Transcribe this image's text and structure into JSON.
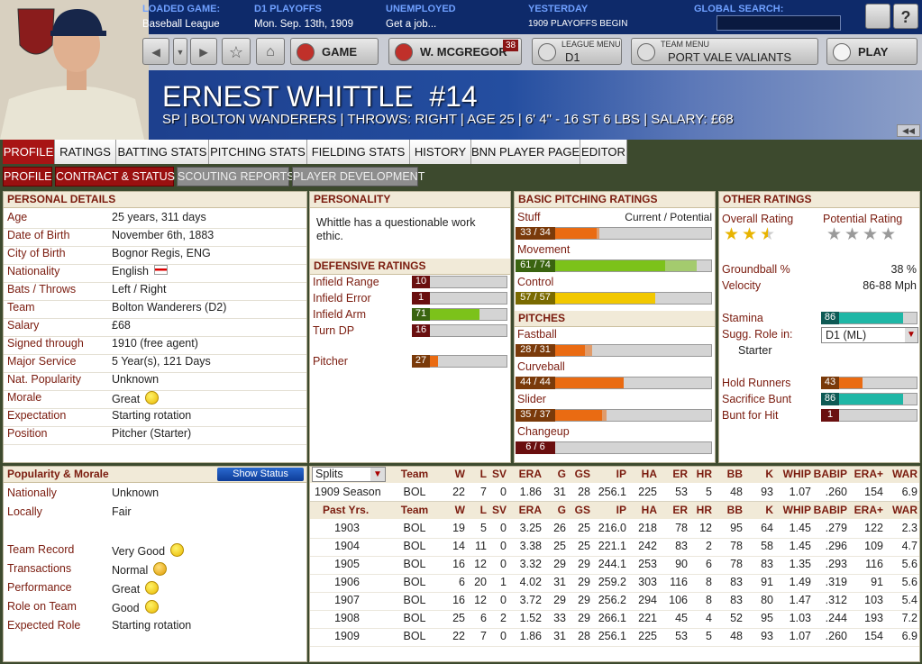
{
  "header": {
    "loaded_game_label": "LOADED GAME:",
    "loaded_game": "Baseball League",
    "league_label": "D1 PLAYOFFS",
    "date": "Mon. Sep. 13th, 1909",
    "status_label": "UNEMPLOYED",
    "status": "Get a job...",
    "yesterday_label": "YESTERDAY",
    "yesterday": "1909 PLAYOFFS BEGIN",
    "search_label": "GLOBAL SEARCH:"
  },
  "nav": {
    "game": "GAME",
    "manager": "W. MCGREGOR",
    "manager_badge": "38",
    "league_menu_label": "LEAGUE MENU",
    "league_menu": "D1",
    "team_menu_label": "TEAM MENU",
    "team_menu": "PORT VALE VALIANTS",
    "play": "PLAY"
  },
  "player": {
    "name": "ERNEST WHITTLE  #14",
    "info": "SP | BOLTON WANDERERS | THROWS: RIGHT | AGE 25 | 6' 4\" - 16 ST 6 LBS | SALARY: £68"
  },
  "tabs": [
    "PROFILE",
    "RATINGS",
    "BATTING STATS",
    "PITCHING STATS",
    "FIELDING STATS",
    "HISTORY",
    "BNN PLAYER PAGE",
    "EDITOR"
  ],
  "subtabs": [
    "PROFILE",
    "CONTRACT & STATUS",
    "SCOUTING REPORTS",
    "PLAYER DEVELOPMENT"
  ],
  "personal_details": {
    "title": "PERSONAL DETAILS",
    "rows": [
      [
        "Age",
        "25 years, 311 days"
      ],
      [
        "Date of Birth",
        "November 6th, 1883"
      ],
      [
        "City of Birth",
        "Bognor Regis, ENG"
      ],
      [
        "Nationality",
        "English"
      ],
      [
        "Bats / Throws",
        "Left / Right"
      ],
      [
        "Team",
        "Bolton Wanderers (D2)"
      ],
      [
        "Salary",
        "£68"
      ],
      [
        "Signed through",
        "1910 (free agent)"
      ],
      [
        "Major Service",
        "5 Year(s), 121 Days"
      ],
      [
        "Nat. Popularity",
        "Unknown"
      ],
      [
        "Morale",
        "Great"
      ],
      [
        "Expectation",
        "Starting rotation"
      ],
      [
        "Position",
        "Pitcher (Starter)"
      ]
    ]
  },
  "personality": {
    "title": "PERSONALITY",
    "text": "Whittle has a questionable work ethic.",
    "defensive_title": "DEFENSIVE RATINGS",
    "defensive": [
      {
        "name": "Infield Range",
        "value": 10
      },
      {
        "name": "Infield Error",
        "value": 1
      },
      {
        "name": "Infield Arm",
        "value": 71
      },
      {
        "name": "Turn DP",
        "value": 16
      }
    ],
    "pitcher": {
      "name": "Pitcher",
      "value": 27
    }
  },
  "basic_pitching": {
    "title": "BASIC PITCHING RATINGS",
    "header": "Current / Potential",
    "ratings": [
      {
        "name": "Stuff",
        "value": "33 / 34"
      },
      {
        "name": "Movement",
        "value": "61 / 74"
      },
      {
        "name": "Control",
        "value": "57 / 57"
      }
    ],
    "pitches_title": "PITCHES",
    "pitches": [
      {
        "name": "Fastball",
        "value": "28 / 31"
      },
      {
        "name": "Curveball",
        "value": "44 / 44"
      },
      {
        "name": "Slider",
        "value": "35 / 37"
      },
      {
        "name": "Changeup",
        "value": "6 / 6"
      }
    ]
  },
  "other_ratings": {
    "title": "OTHER RATINGS",
    "overall_label": "Overall Rating",
    "potential_label": "Potential Rating",
    "overall_stars": 2.5,
    "potential_stars": 4,
    "rows": [
      {
        "label": "Groundball %",
        "value": "38 %"
      },
      {
        "label": "Velocity",
        "value": "86-88 Mph"
      }
    ],
    "stamina": {
      "name": "Stamina",
      "value": 86
    },
    "role_label": "Sugg. Role in:",
    "role_select": "D1 (ML)",
    "role": "Starter",
    "bars": [
      {
        "name": "Hold Runners",
        "value": 43
      },
      {
        "name": "Sacrifice Bunt",
        "value": 86
      },
      {
        "name": "Bunt for Hit",
        "value": 1
      }
    ]
  },
  "popularity": {
    "title": "Popularity & Morale",
    "button": "Show Status",
    "rows": [
      [
        "Nationally",
        "Unknown"
      ],
      [
        "Locally",
        "Fair"
      ]
    ],
    "rows2": [
      [
        "Team Record",
        "Very Good"
      ],
      [
        "Transactions",
        "Normal"
      ],
      [
        "Performance",
        "Great"
      ],
      [
        "Role on Team",
        "Good"
      ],
      [
        "Expected Role",
        "Starting rotation"
      ]
    ]
  },
  "stats": {
    "splits": "Splits",
    "columns": [
      "Team",
      "W",
      "L",
      "SV",
      "ERA",
      "G",
      "GS",
      "IP",
      "HA",
      "ER",
      "HR",
      "BB",
      "K",
      "WHIP",
      "BABIP",
      "ERA+",
      "WAR"
    ],
    "season": [
      "1909 Season",
      "BOL",
      22,
      7,
      0,
      1.86,
      31,
      28,
      256.1,
      225,
      53,
      5,
      48,
      93,
      1.07,
      ".260",
      154,
      6.9
    ],
    "past_label": "Past Yrs.",
    "years": [
      [
        1903,
        "BOL",
        19,
        5,
        0,
        3.25,
        26,
        25,
        "216.0",
        218,
        78,
        12,
        95,
        64,
        1.45,
        ".279",
        122,
        2.3
      ],
      [
        1904,
        "BOL",
        14,
        11,
        0,
        3.38,
        25,
        25,
        221.1,
        242,
        83,
        2,
        78,
        58,
        1.45,
        ".296",
        109,
        4.7
      ],
      [
        1905,
        "BOL",
        16,
        12,
        0,
        3.32,
        29,
        29,
        244.1,
        253,
        90,
        6,
        78,
        83,
        1.35,
        ".293",
        116,
        5.6
      ],
      [
        1906,
        "BOL",
        6,
        20,
        1,
        4.02,
        31,
        29,
        259.2,
        303,
        116,
        8,
        83,
        91,
        1.49,
        ".319",
        91,
        5.6
      ],
      [
        1907,
        "BOL",
        16,
        12,
        0,
        3.72,
        29,
        29,
        256.2,
        294,
        106,
        8,
        83,
        80,
        1.47,
        ".312",
        103,
        5.4
      ],
      [
        1908,
        "BOL",
        25,
        6,
        2,
        1.52,
        33,
        29,
        266.1,
        221,
        45,
        4,
        52,
        95,
        1.03,
        ".244",
        193,
        7.2
      ],
      [
        1909,
        "BOL",
        22,
        7,
        0,
        1.86,
        31,
        28,
        256.1,
        225,
        53,
        5,
        48,
        93,
        1.07,
        ".260",
        154,
        6.9
      ]
    ]
  }
}
